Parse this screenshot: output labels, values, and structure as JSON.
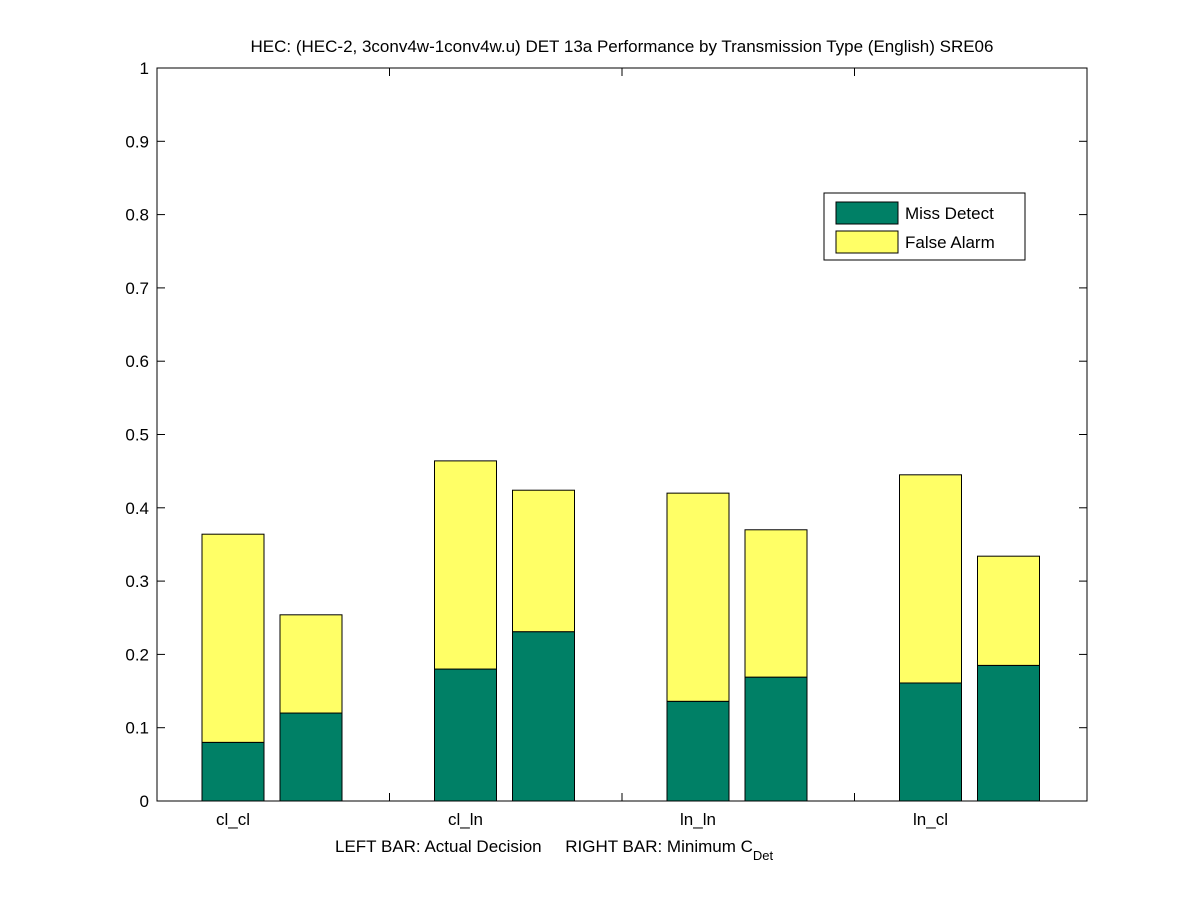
{
  "chart_data": {
    "type": "bar",
    "stacked": true,
    "title": "HEC: (HEC-2, 3conv4w-1conv4w.u) DET 13a Performance by Transmission Type (English) SRE06",
    "xlabel_main": "LEFT BAR: Actual Decision     RIGHT BAR: Minimum C",
    "xlabel_sub": "Det",
    "ylabel": "",
    "ylim": [
      0,
      1
    ],
    "yticks": [
      "0",
      "0.1",
      "0.2",
      "0.3",
      "0.4",
      "0.5",
      "0.6",
      "0.7",
      "0.8",
      "0.9",
      "1"
    ],
    "categories": [
      "cl_cl",
      "cl_ln",
      "ln_ln",
      "ln_cl"
    ],
    "bars_per_category": [
      "Actual Decision",
      "Minimum C_Det"
    ],
    "series": [
      {
        "name": "Miss Detect",
        "color": "#008066",
        "values": [
          [
            0.08,
            0.12
          ],
          [
            0.18,
            0.231
          ],
          [
            0.136,
            0.169
          ],
          [
            0.161,
            0.185
          ]
        ]
      },
      {
        "name": "False Alarm",
        "color": "#ffff66",
        "values": [
          [
            0.284,
            0.134
          ],
          [
            0.284,
            0.193
          ],
          [
            0.284,
            0.201
          ],
          [
            0.284,
            0.149
          ]
        ]
      }
    ],
    "totals": [
      [
        0.364,
        0.254
      ],
      [
        0.464,
        0.424
      ],
      [
        0.42,
        0.37
      ],
      [
        0.445,
        0.334
      ]
    ],
    "legend": {
      "position": "top-right",
      "entries": [
        "Miss Detect",
        "False Alarm"
      ]
    },
    "grid": false
  }
}
